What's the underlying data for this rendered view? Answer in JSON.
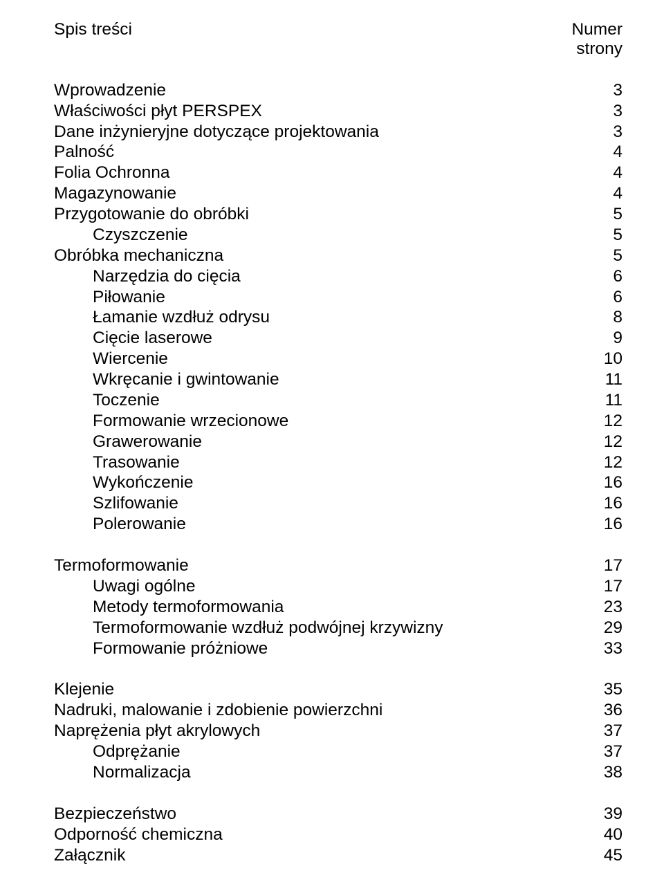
{
  "header": {
    "title": "Spis treści",
    "page_col": "Numer",
    "page_col_sub": "strony"
  },
  "sections": [
    {
      "gap_before": true,
      "rows": [
        {
          "indent": 0,
          "label": "Wprowadzenie",
          "page": "3"
        },
        {
          "indent": 0,
          "label": "Właściwości płyt PERSPEX",
          "page": "3"
        },
        {
          "indent": 0,
          "label": "Dane inżynieryjne dotyczące projektowania",
          "page": "3"
        },
        {
          "indent": 0,
          "label": "Palność",
          "page": "4"
        },
        {
          "indent": 0,
          "label": "Folia Ochronna",
          "page": "4"
        },
        {
          "indent": 0,
          "label": "Magazynowanie",
          "page": "4"
        },
        {
          "indent": 0,
          "label": "Przygotowanie do obróbki",
          "page": "5"
        },
        {
          "indent": 1,
          "label": "Czyszczenie",
          "page": "5"
        },
        {
          "indent": 0,
          "label": "Obróbka mechaniczna",
          "page": "5"
        },
        {
          "indent": 1,
          "label": "Narzędzia do cięcia",
          "page": "6"
        },
        {
          "indent": 1,
          "label": "Piłowanie",
          "page": "6"
        },
        {
          "indent": 1,
          "label": "Łamanie wzdłuż odrysu",
          "page": "8"
        },
        {
          "indent": 1,
          "label": "Cięcie laserowe",
          "page": "9"
        },
        {
          "indent": 1,
          "label": "Wiercenie",
          "page": "10"
        },
        {
          "indent": 1,
          "label": "Wkręcanie i gwintowanie",
          "page": "11"
        },
        {
          "indent": 1,
          "label": "Toczenie",
          "page": "11"
        },
        {
          "indent": 1,
          "label": "Formowanie wrzecionowe",
          "page": "12"
        },
        {
          "indent": 1,
          "label": "Grawerowanie",
          "page": "12"
        },
        {
          "indent": 1,
          "label": "Trasowanie",
          "page": "12"
        },
        {
          "indent": 1,
          "label": "Wykończenie",
          "page": "16"
        },
        {
          "indent": 1,
          "label": "Szlifowanie",
          "page": "16"
        },
        {
          "indent": 1,
          "label": "Polerowanie",
          "page": "16"
        }
      ]
    },
    {
      "gap_before": true,
      "rows": [
        {
          "indent": 0,
          "label": "Termoformowanie",
          "page": "17"
        },
        {
          "indent": 1,
          "label": "Uwagi ogólne",
          "page": "17"
        },
        {
          "indent": 1,
          "label": "Metody termoformowania",
          "page": "23"
        },
        {
          "indent": 1,
          "label": "Termoformowanie wzdłuż podwójnej krzywizny",
          "page": "29"
        },
        {
          "indent": 1,
          "label": "Formowanie próżniowe",
          "page": "33"
        }
      ]
    },
    {
      "gap_before": true,
      "rows": [
        {
          "indent": 0,
          "label": "Klejenie",
          "page": "35"
        },
        {
          "indent": 0,
          "label": "Nadruki, malowanie i zdobienie powierzchni",
          "page": "36"
        },
        {
          "indent": 0,
          "label": "Naprężenia płyt akrylowych",
          "page": "37"
        },
        {
          "indent": 1,
          "label": "Odprężanie",
          "page": "37"
        },
        {
          "indent": 1,
          "label": "Normalizacja",
          "page": "38"
        }
      ]
    },
    {
      "gap_before": true,
      "rows": [
        {
          "indent": 0,
          "label": "Bezpieczeństwo",
          "page": "39"
        },
        {
          "indent": 0,
          "label": "Odporność chemiczna",
          "page": "40"
        },
        {
          "indent": 0,
          "label": "Załącznik",
          "page": "45"
        }
      ]
    }
  ]
}
